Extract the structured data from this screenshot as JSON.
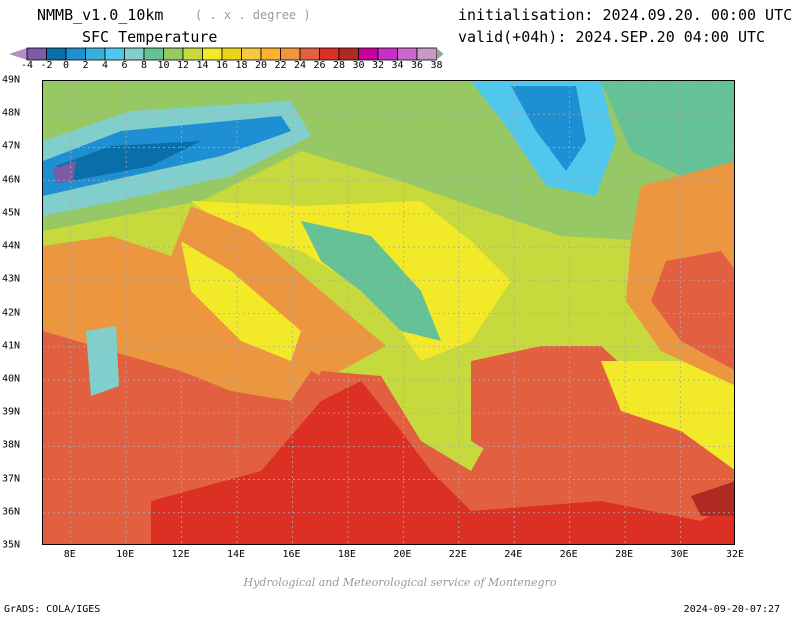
{
  "header": {
    "model": "NMMB_v1.0_10km",
    "unit": "( . x . degree )",
    "variable": "SFC Temperature",
    "init": "initialisation: 2024.09.20. 00:00 UTC",
    "valid": "valid(+04h): 2024.SEP.20 04:00 UTC"
  },
  "colorbar": {
    "labels": [
      "-4",
      "-2",
      "0",
      "2",
      "4",
      "6",
      "8",
      "10",
      "12",
      "14",
      "16",
      "18",
      "20",
      "22",
      "24",
      "26",
      "28",
      "30",
      "32",
      "34",
      "36",
      "38"
    ],
    "colors": [
      "#7b5aa6",
      "#0a6ea8",
      "#1e8fd2",
      "#38b0dc",
      "#50c8ee",
      "#80cfcc",
      "#64c296",
      "#96c864",
      "#c6da3e",
      "#f2ea28",
      "#ecd41c",
      "#f4c840",
      "#fcb22c",
      "#ec9640",
      "#e26040",
      "#dc3024",
      "#b02a24",
      "#c8009a",
      "#c830c8",
      "#c868c8",
      "#c898c8"
    ],
    "under_color": "#b48cc8",
    "over_color": "#a0a0a0"
  },
  "axes": {
    "lat": [
      "49N",
      "48N",
      "47N",
      "46N",
      "45N",
      "44N",
      "43N",
      "42N",
      "41N",
      "40N",
      "39N",
      "38N",
      "37N",
      "36N",
      "35N"
    ],
    "lon": [
      "8E",
      "10E",
      "12E",
      "14E",
      "16E",
      "18E",
      "20E",
      "22E",
      "24E",
      "26E",
      "28E",
      "30E",
      "32E"
    ]
  },
  "footer": {
    "credit": "Hydrological and Meteorological service of Montenegro",
    "software": "GrADS: COLA/IGES",
    "timestamp": "2024-09-20-07:27"
  }
}
